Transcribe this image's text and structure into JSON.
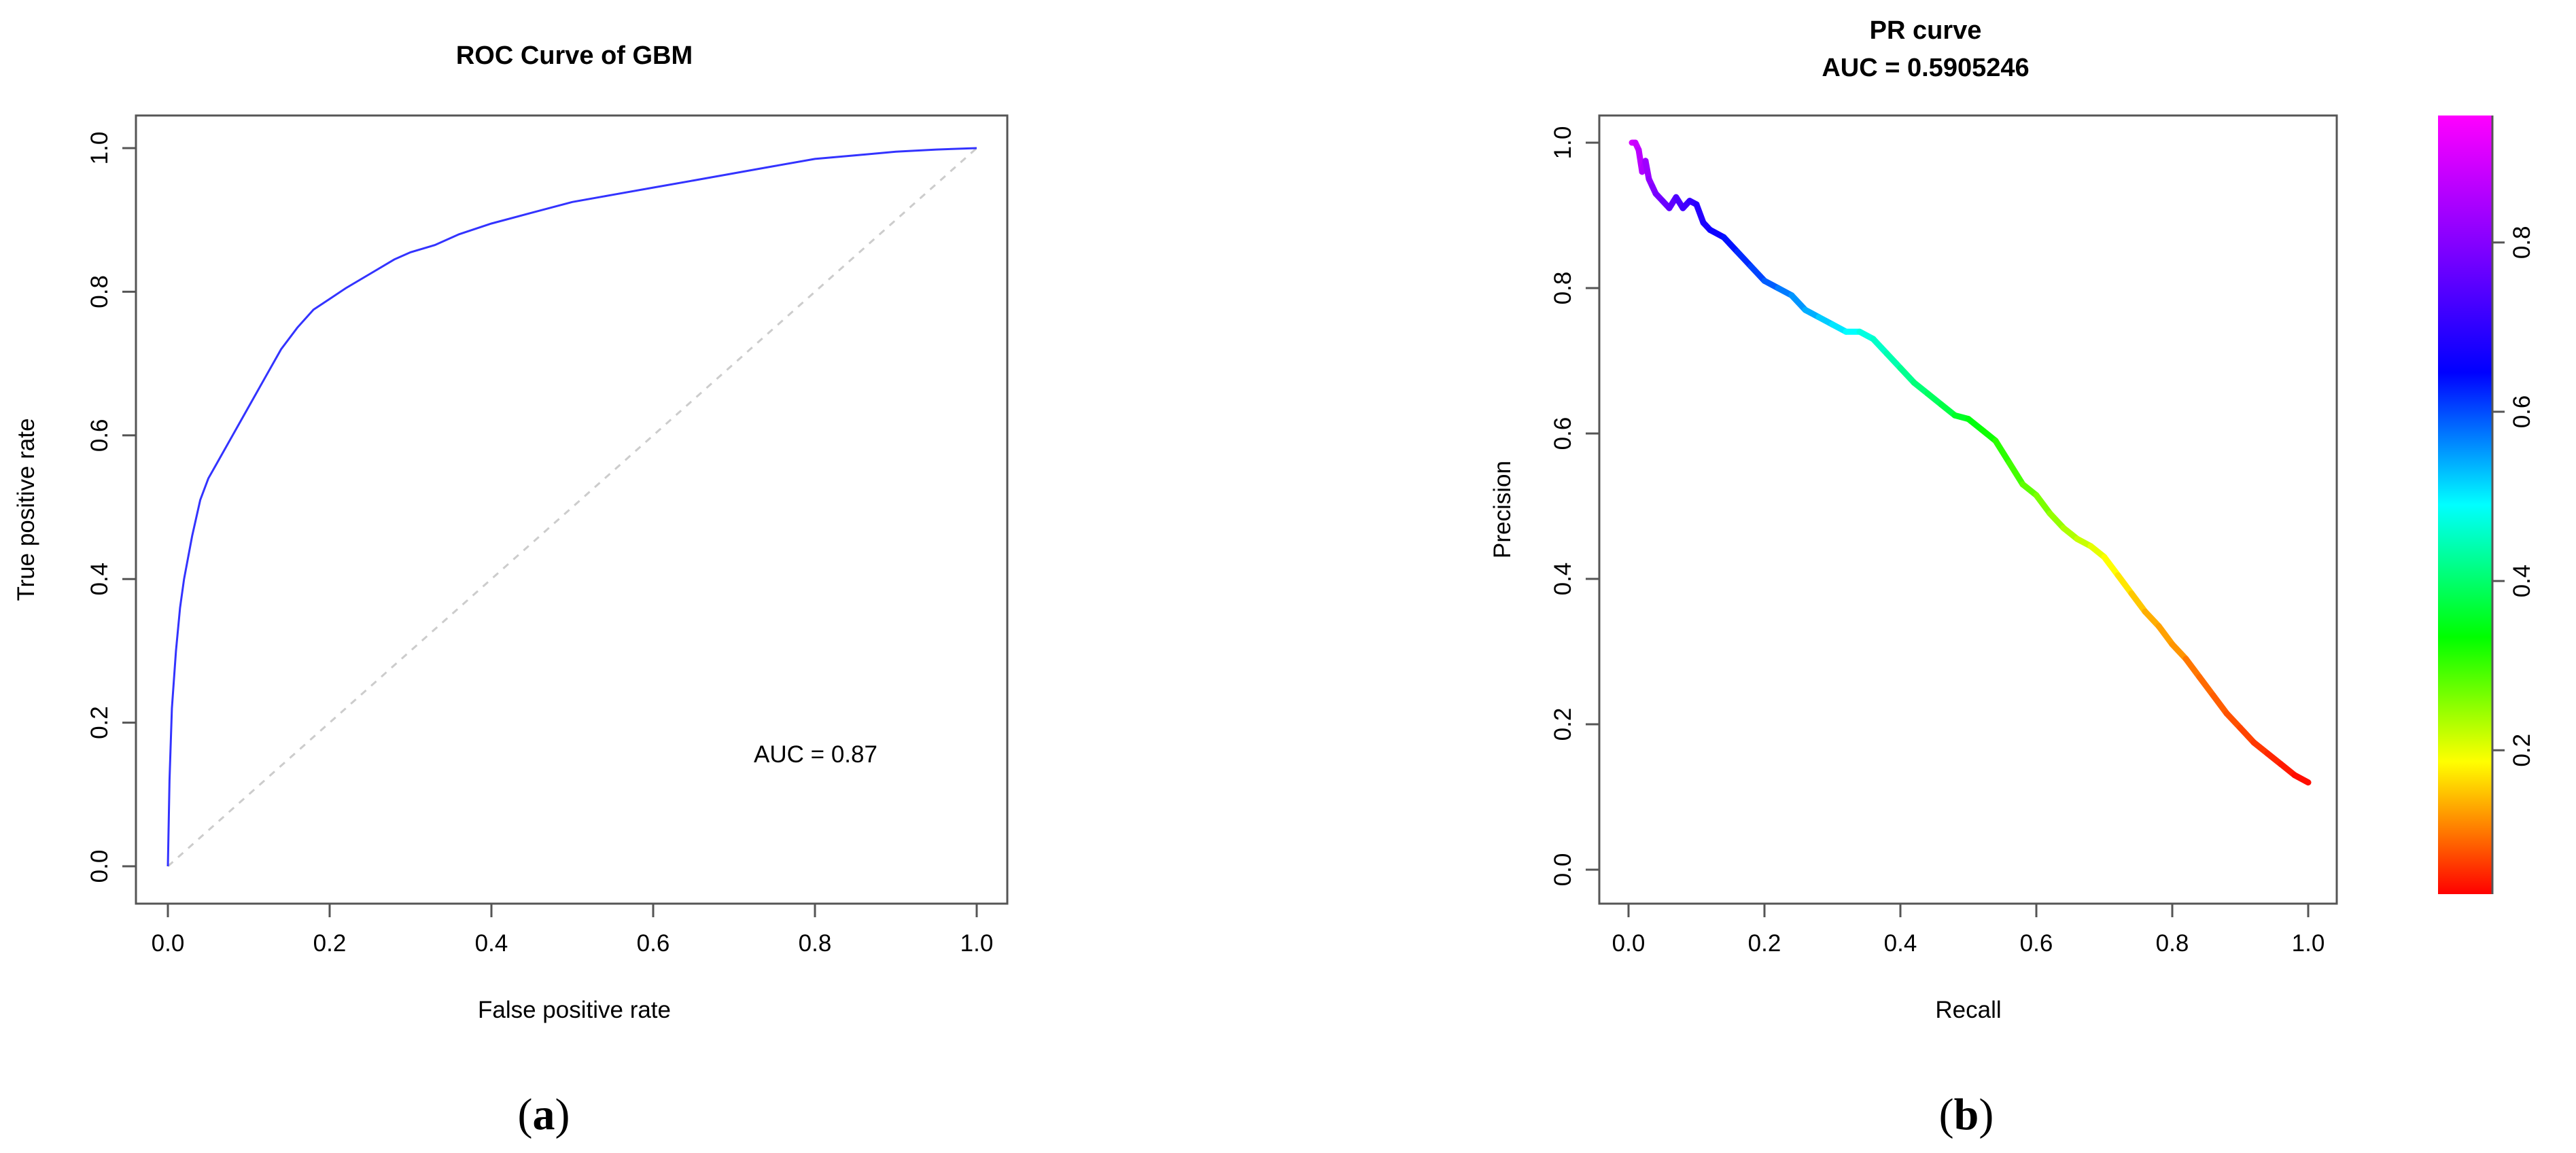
{
  "chart_data": [
    {
      "type": "line",
      "panel": "a",
      "title": "ROC Curve of GBM",
      "xlabel": "False positive rate",
      "ylabel": "True positive rate",
      "xlim": [
        0,
        1
      ],
      "ylim": [
        0,
        1
      ],
      "xticks": [
        "0.0",
        "0.2",
        "0.4",
        "0.6",
        "0.8",
        "1.0"
      ],
      "yticks": [
        "0.0",
        "0.2",
        "0.4",
        "0.6",
        "0.8",
        "1.0"
      ],
      "annotation": "AUC = 0.87",
      "line_color": "#3333ff",
      "diagonal_color": "#cccccc",
      "series": [
        {
          "x": [
            0.0,
            0.002,
            0.005,
            0.01,
            0.015,
            0.02,
            0.03,
            0.04,
            0.05,
            0.06,
            0.08,
            0.1,
            0.12,
            0.14,
            0.16,
            0.18,
            0.2,
            0.22,
            0.25,
            0.28,
            0.3,
            0.33,
            0.36,
            0.4,
            0.45,
            0.5,
            0.55,
            0.6,
            0.65,
            0.7,
            0.75,
            0.8,
            0.85,
            0.9,
            0.95,
            1.0
          ],
          "y": [
            0.0,
            0.12,
            0.22,
            0.3,
            0.36,
            0.4,
            0.46,
            0.51,
            0.54,
            0.56,
            0.6,
            0.64,
            0.68,
            0.72,
            0.75,
            0.775,
            0.79,
            0.805,
            0.825,
            0.845,
            0.855,
            0.865,
            0.88,
            0.895,
            0.91,
            0.925,
            0.935,
            0.945,
            0.955,
            0.965,
            0.975,
            0.985,
            0.99,
            0.995,
            0.998,
            1.0
          ]
        }
      ]
    },
    {
      "type": "line",
      "panel": "b",
      "title": "PR curve",
      "subtitle": "AUC = 0.5905246",
      "xlabel": "Recall",
      "ylabel": "Precision",
      "xlim": [
        0,
        1
      ],
      "ylim": [
        0,
        1
      ],
      "xticks": [
        "0.0",
        "0.2",
        "0.4",
        "0.6",
        "0.8",
        "1.0"
      ],
      "yticks": [
        "0.0",
        "0.2",
        "0.4",
        "0.6",
        "0.8",
        "1.0"
      ],
      "colorbar": {
        "ticks": [
          "0.2",
          "0.4",
          "0.6",
          "0.8"
        ],
        "range": [
          0.03,
          0.95
        ],
        "colors": [
          "#ff0000",
          "#ffff00",
          "#00ff00",
          "#00ffff",
          "#0000ff",
          "#ff00ff"
        ]
      },
      "series": [
        {
          "x": [
            0.005,
            0.01,
            0.015,
            0.02,
            0.025,
            0.03,
            0.035,
            0.04,
            0.05,
            0.06,
            0.07,
            0.08,
            0.09,
            0.1,
            0.11,
            0.12,
            0.14,
            0.16,
            0.18,
            0.2,
            0.22,
            0.24,
            0.26,
            0.28,
            0.3,
            0.32,
            0.34,
            0.36,
            0.38,
            0.4,
            0.42,
            0.44,
            0.46,
            0.48,
            0.5,
            0.52,
            0.54,
            0.56,
            0.58,
            0.6,
            0.62,
            0.64,
            0.66,
            0.68,
            0.7,
            0.72,
            0.74,
            0.76,
            0.78,
            0.8,
            0.82,
            0.84,
            0.86,
            0.88,
            0.9,
            0.92,
            0.94,
            0.96,
            0.98,
            1.0
          ],
          "y": [
            1.0,
            1.0,
            0.99,
            0.96,
            0.975,
            0.95,
            0.94,
            0.93,
            0.92,
            0.91,
            0.925,
            0.91,
            0.92,
            0.915,
            0.89,
            0.88,
            0.87,
            0.85,
            0.83,
            0.81,
            0.8,
            0.79,
            0.77,
            0.76,
            0.75,
            0.74,
            0.74,
            0.73,
            0.71,
            0.69,
            0.67,
            0.655,
            0.64,
            0.625,
            0.62,
            0.605,
            0.59,
            0.56,
            0.53,
            0.515,
            0.49,
            0.47,
            0.455,
            0.445,
            0.43,
            0.405,
            0.38,
            0.355,
            0.335,
            0.31,
            0.29,
            0.265,
            0.24,
            0.215,
            0.195,
            0.175,
            0.16,
            0.145,
            0.13,
            0.12
          ],
          "threshold": [
            0.95,
            0.94,
            0.93,
            0.92,
            0.91,
            0.9,
            0.89,
            0.88,
            0.87,
            0.86,
            0.85,
            0.84,
            0.83,
            0.82,
            0.81,
            0.8,
            0.78,
            0.76,
            0.74,
            0.72,
            0.7,
            0.68,
            0.66,
            0.64,
            0.62,
            0.6,
            0.58,
            0.56,
            0.54,
            0.52,
            0.5,
            0.48,
            0.46,
            0.44,
            0.42,
            0.4,
            0.38,
            0.36,
            0.34,
            0.32,
            0.3,
            0.28,
            0.26,
            0.24,
            0.22,
            0.2,
            0.18,
            0.16,
            0.15,
            0.14,
            0.12,
            0.11,
            0.1,
            0.09,
            0.08,
            0.07,
            0.06,
            0.05,
            0.04,
            0.03
          ]
        }
      ]
    }
  ],
  "captions": [
    "(a)",
    "(b)"
  ]
}
